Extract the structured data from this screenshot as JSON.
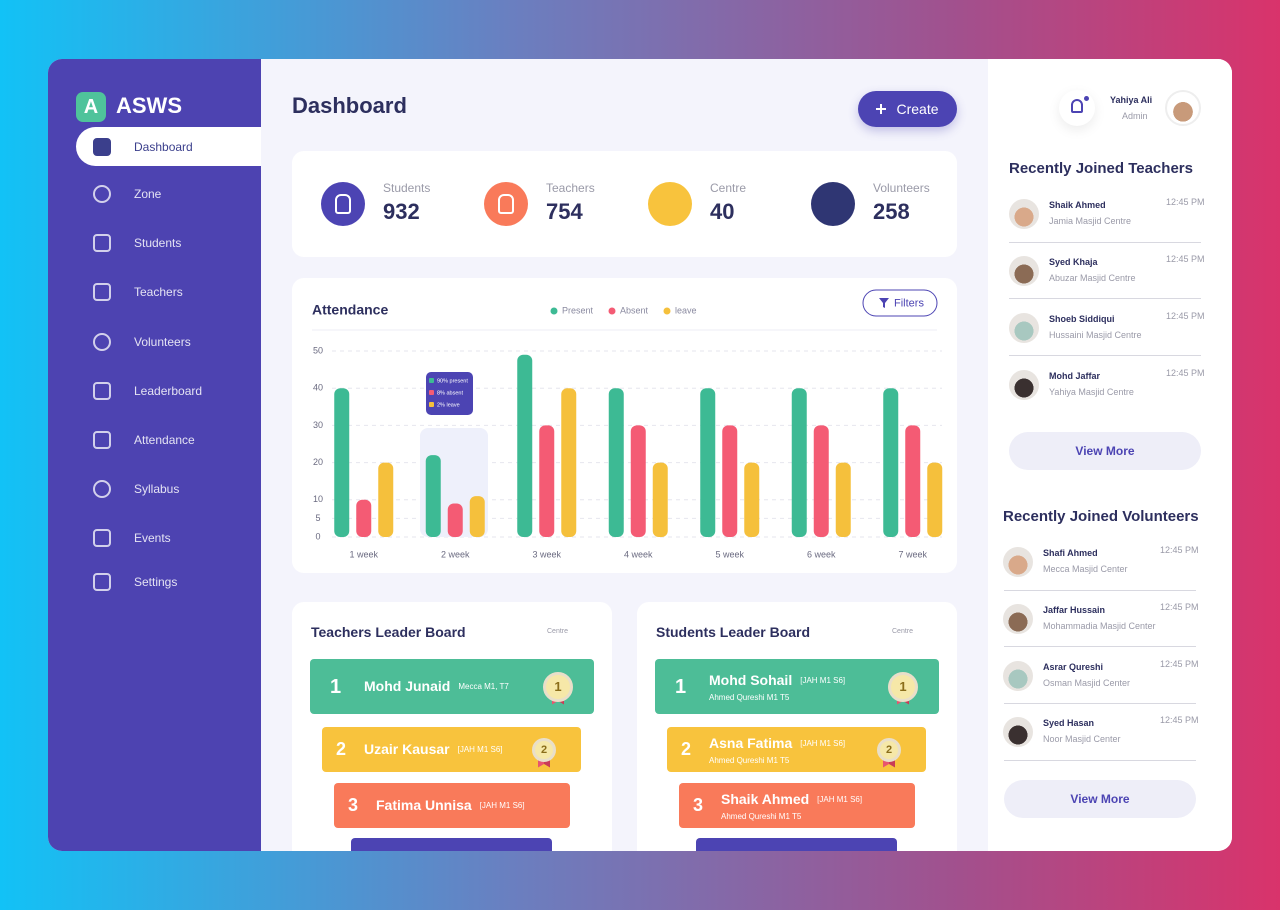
{
  "brand": {
    "logo": "A",
    "name": "ASWS"
  },
  "nav": [
    "Dashboard",
    "Zone",
    "Students",
    "Teachers",
    "Volunteers",
    "Leaderboard",
    "Attendance",
    "Syllabus",
    "Events",
    "Settings"
  ],
  "header": {
    "title": "Dashboard",
    "create_button": "Create"
  },
  "stats": [
    {
      "label": "Students",
      "value": 932
    },
    {
      "label": "Teachers",
      "value": 754
    },
    {
      "label": "Centre",
      "value": 40
    },
    {
      "label": "Volunteers",
      "value": 258
    }
  ],
  "chart_data": {
    "type": "bar",
    "title": "Attendance",
    "filter_button": "Filters",
    "categories": [
      "1 week",
      "2 week",
      "3 week",
      "4 week",
      "5 week",
      "6 week",
      "7 week"
    ],
    "series": [
      {
        "name": "Present",
        "color": "#3dba94",
        "values": [
          40,
          22,
          49,
          40,
          40,
          40,
          40
        ]
      },
      {
        "name": "Absent",
        "color": "#f45b74",
        "values": [
          10,
          9,
          30,
          30,
          30,
          30,
          30
        ]
      },
      {
        "name": "leave",
        "color": "#f5c03c",
        "values": [
          20,
          11,
          40,
          20,
          20,
          20,
          20
        ]
      }
    ],
    "ylim": [
      0,
      50
    ],
    "yticks": [
      0,
      5,
      10,
      20,
      30,
      40,
      50
    ],
    "grid": true,
    "tooltip": [
      "90% present",
      "8% absent",
      "2% leave"
    ]
  },
  "teachers_board": {
    "title": "Teachers Leader Board",
    "column": "Centre",
    "rows": [
      {
        "rank": 1,
        "name": "Mohd Junaid",
        "tag": "Mecca M1, T7"
      },
      {
        "rank": 2,
        "name": "Uzair Kausar",
        "tag": "[JAH M1 S6]"
      },
      {
        "rank": 3,
        "name": "Fatima Unnisa",
        "tag": "[JAH M1 S6]"
      }
    ]
  },
  "students_board": {
    "title": "Students Leader Board",
    "column": "Centre",
    "rows": [
      {
        "rank": 1,
        "name": "Mohd Sohail",
        "tag": "[JAH M1 S6]",
        "sub": "Ahmed Qureshi M1 T5"
      },
      {
        "rank": 2,
        "name": "Asna Fatima",
        "tag": "[JAH M1 S6]",
        "sub": "Ahmed Qureshi M1 T5"
      },
      {
        "rank": 3,
        "name": "Shaik Ahmed",
        "tag": "[JAH M1 S6]",
        "sub": "Ahmed Qureshi M1 T5"
      }
    ]
  },
  "profile": {
    "name": "Yahiya Ali",
    "role": "Admin"
  },
  "recent_teachers": {
    "title": "Recently Joined Teachers",
    "items": [
      {
        "name": "Shaik Ahmed",
        "place": "Jamia Masjid Centre",
        "time": "12:45 PM"
      },
      {
        "name": "Syed Khaja",
        "place": "Abuzar Masjid Centre",
        "time": "12:45 PM"
      },
      {
        "name": "Shoeb Siddiqui",
        "place": "Hussaini Masjid Centre",
        "time": "12:45 PM"
      },
      {
        "name": "Mohd Jaffar",
        "place": "Yahiya Masjid Centre",
        "time": "12:45 PM"
      }
    ],
    "button": "View More"
  },
  "recent_volunteers": {
    "title": "Recently Joined Volunteers",
    "items": [
      {
        "name": "Shafi Ahmed",
        "place": "Mecca Masjid Center",
        "time": "12:45 PM"
      },
      {
        "name": "Jaffar Hussain",
        "place": "Mohammadia Masjid Center",
        "time": "12:45 PM"
      },
      {
        "name": "Asrar Qureshi",
        "place": "Osman Masjid Center",
        "time": "12:45 PM"
      },
      {
        "name": "Syed Hasan",
        "place": "Noor Masjid Center",
        "time": "12:45 PM"
      }
    ],
    "button": "View More"
  }
}
